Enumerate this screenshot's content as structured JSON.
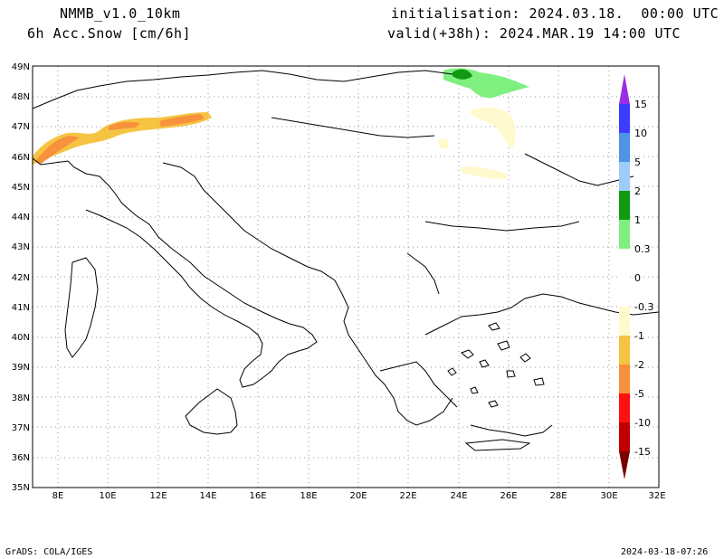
{
  "header": {
    "model": "NMMB_v1.0_10km",
    "variable": "6h Acc.Snow [cm/6h]",
    "init": "initialisation: 2024.03.18.  00:00 UTC",
    "valid": "valid(+38h): 2024.MAR.19 14:00 UTC"
  },
  "footer": {
    "left": "GrADS: COLA/IGES",
    "right": "2024-03-18-07:26"
  },
  "map": {
    "lat_labels": [
      "49N",
      "48N",
      "47N",
      "46N",
      "45N",
      "44N",
      "43N",
      "42N",
      "41N",
      "40N",
      "39N",
      "38N",
      "37N",
      "36N",
      "35N"
    ],
    "lon_labels": [
      "8E",
      "10E",
      "12E",
      "14E",
      "16E",
      "18E",
      "20E",
      "22E",
      "24E",
      "26E",
      "28E",
      "30E",
      "32E"
    ]
  },
  "colorbar": {
    "labels": [
      "15",
      "10",
      "5",
      "2",
      "1",
      "0.3",
      "0",
      "-0.3",
      "-1",
      "-2",
      "-5",
      "-10",
      "-15"
    ],
    "colors": {
      "c15": "#9a2ee6",
      "c10": "#3c3cff",
      "c5": "#4f94e6",
      "c2": "#9ccdfa",
      "c1": "#119911",
      "c03": "#7ff07f",
      "c0": "#ffffff",
      "cm03": "#fffacd",
      "cm1": "#f5c442",
      "cm2": "#f7913c",
      "cm5": "#ff1010",
      "cm10": "#c00000",
      "cm15": "#7a0000"
    }
  }
}
